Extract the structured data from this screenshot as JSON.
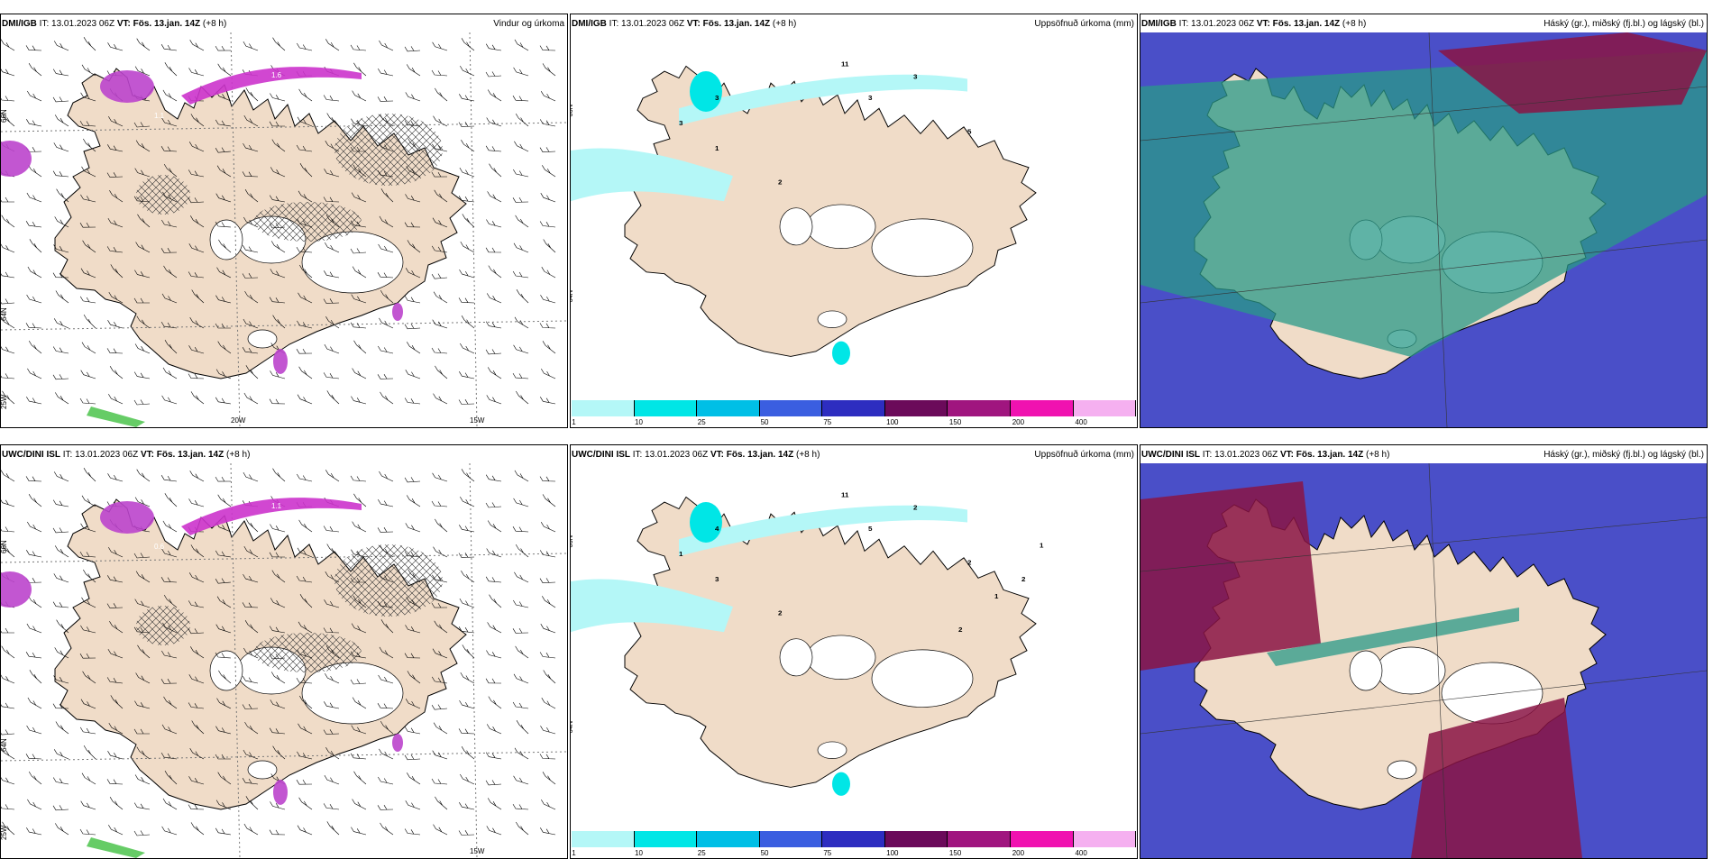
{
  "panels": [
    {
      "id": "p1",
      "type": "wind",
      "model": "DMI/IGB",
      "it_label": "IT:",
      "it": "13.01.2023 06Z",
      "vt_label": "VT:",
      "vt": "Fös. 13.jan. 14Z",
      "lead": "(+8 h)",
      "title": "Vindur og úrkoma",
      "lon_labels": [
        "20W",
        "15W"
      ],
      "lat_labels": [
        "66N",
        "64N",
        "25W"
      ],
      "values": [
        "1.6",
        "0.9",
        "1.1",
        "0.6"
      ]
    },
    {
      "id": "p2",
      "type": "precip",
      "model": "DMI/IGB",
      "it_label": "IT:",
      "it": "13.01.2023 06Z",
      "vt_label": "VT:",
      "vt": "Fös. 13.jan. 14Z",
      "lead": "(+8 h)",
      "title": "Uppsöfnuð úrkoma (mm)",
      "lat_labels": [
        "66N",
        "64N"
      ],
      "values": [
        "11",
        "3",
        "3",
        "3",
        "3",
        "1",
        "2",
        "5"
      ]
    },
    {
      "id": "p3",
      "type": "cloud",
      "model": "DMI/IGB",
      "it_label": "IT:",
      "it": "13.01.2023 06Z",
      "vt_label": "VT:",
      "vt": "Fös. 13.jan. 14Z",
      "lead": "(+8 h)",
      "title": "Háský (gr.), miðský (fj.bl.) og lágský (bl.)"
    },
    {
      "id": "p4",
      "type": "wind",
      "model": "UWC/DINI ISL",
      "it_label": "IT:",
      "it": "13.01.2023 06Z",
      "vt_label": "VT:",
      "vt": "Fös. 13.jan. 14Z",
      "lead": "(+8 h)",
      "title": "",
      "lon_labels": [
        "15W"
      ],
      "lat_labels": [
        "66N",
        "64N",
        "25W"
      ],
      "values": [
        "1.1",
        "0.9",
        "0.6",
        "0.6"
      ]
    },
    {
      "id": "p5",
      "type": "precip",
      "model": "UWC/DINI ISL",
      "it_label": "IT:",
      "it": "13.01.2023 06Z",
      "vt_label": "VT:",
      "vt": "Fös. 13.jan. 14Z",
      "lead": "(+8 h)",
      "title": "Uppsöfnuð úrkoma (mm)",
      "lat_labels": [
        "66N",
        "64N"
      ],
      "values": [
        "11",
        "4",
        "5",
        "1",
        "2",
        "3",
        "2",
        "2",
        "1",
        "2",
        "1",
        "2"
      ]
    },
    {
      "id": "p6",
      "type": "cloud",
      "model": "UWC/DINI ISL",
      "it_label": "IT:",
      "it": "13.01.2023 06Z",
      "vt_label": "VT:",
      "vt": "Fös. 13.jan. 14Z",
      "lead": "(+8 h)",
      "title": "Háský (gr.), miðský (fj.bl.) og lágský (bl.)"
    }
  ],
  "colorbar": {
    "ticks": [
      "1",
      "10",
      "25",
      "50",
      "75",
      "100",
      "150",
      "200",
      "400"
    ],
    "colors": [
      "#b4f7f7",
      "#00e6e6",
      "#00bfe6",
      "#3a5ee0",
      "#2d2dc0",
      "#6b0a5a",
      "#a0157f",
      "#f012b0",
      "#f5b0f0"
    ]
  }
}
